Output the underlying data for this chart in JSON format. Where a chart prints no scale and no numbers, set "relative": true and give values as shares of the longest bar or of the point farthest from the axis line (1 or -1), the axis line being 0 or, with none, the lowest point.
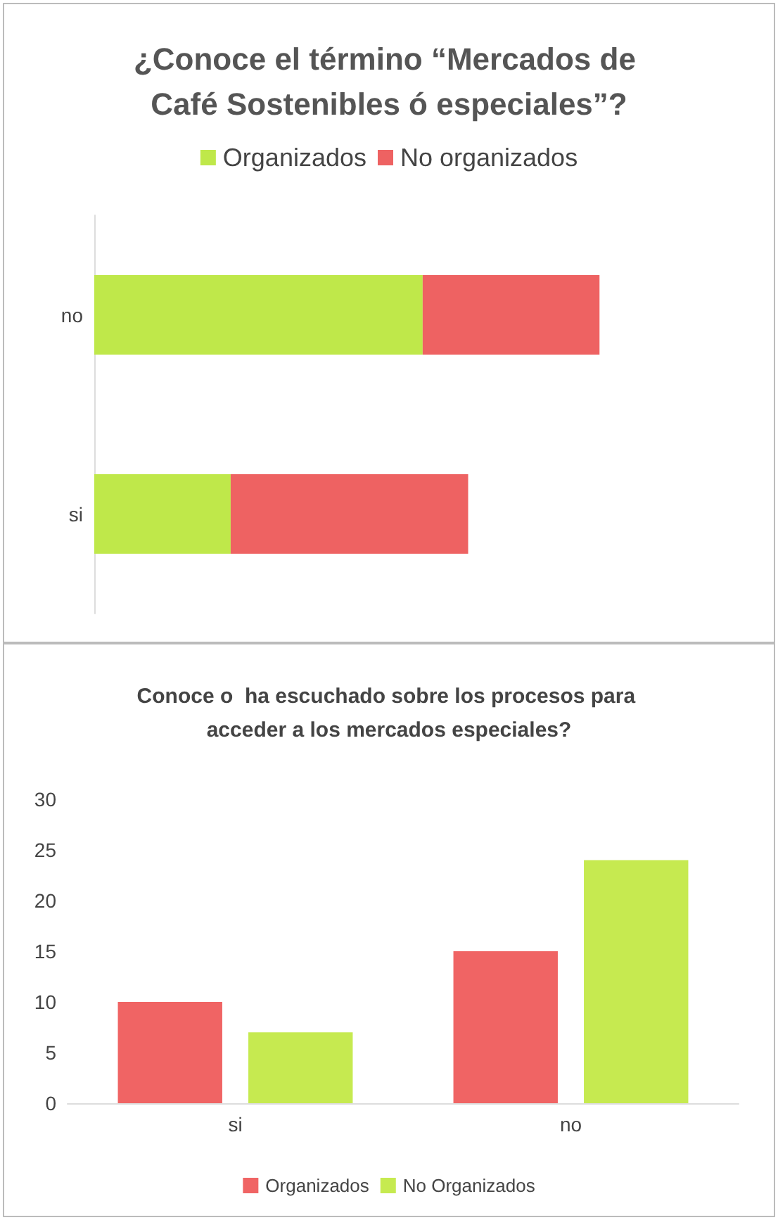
{
  "chart_data": [
    {
      "type": "bar",
      "title": "¿Conoce el término “Mercados de Café Sostenibles ó especiales”?",
      "orientation": "horizontal",
      "stacked": true,
      "relative": true,
      "categories": [
        "no",
        "si"
      ],
      "legend": "top",
      "series": [
        {
          "name": "Organizados",
          "color": "#bfe84a",
          "values": [
            0.65,
            0.27
          ]
        },
        {
          "name": "No organizados",
          "color": "#ee6262",
          "values": [
            0.35,
            0.47
          ]
        }
      ]
    },
    {
      "type": "bar",
      "title": "Conoce o  ha escuchado sobre los procesos para acceder a los mercados especiales?",
      "categories": [
        "si",
        "no"
      ],
      "ylim": [
        0,
        30
      ],
      "yticks": [
        0,
        5,
        10,
        15,
        20,
        25,
        30
      ],
      "legend": "bottom",
      "series": [
        {
          "name": "Organizados",
          "color": "#f06464",
          "values": [
            10,
            15
          ]
        },
        {
          "name": "No Organizados",
          "color": "#c6ea50",
          "values": [
            7,
            24
          ]
        }
      ]
    }
  ]
}
